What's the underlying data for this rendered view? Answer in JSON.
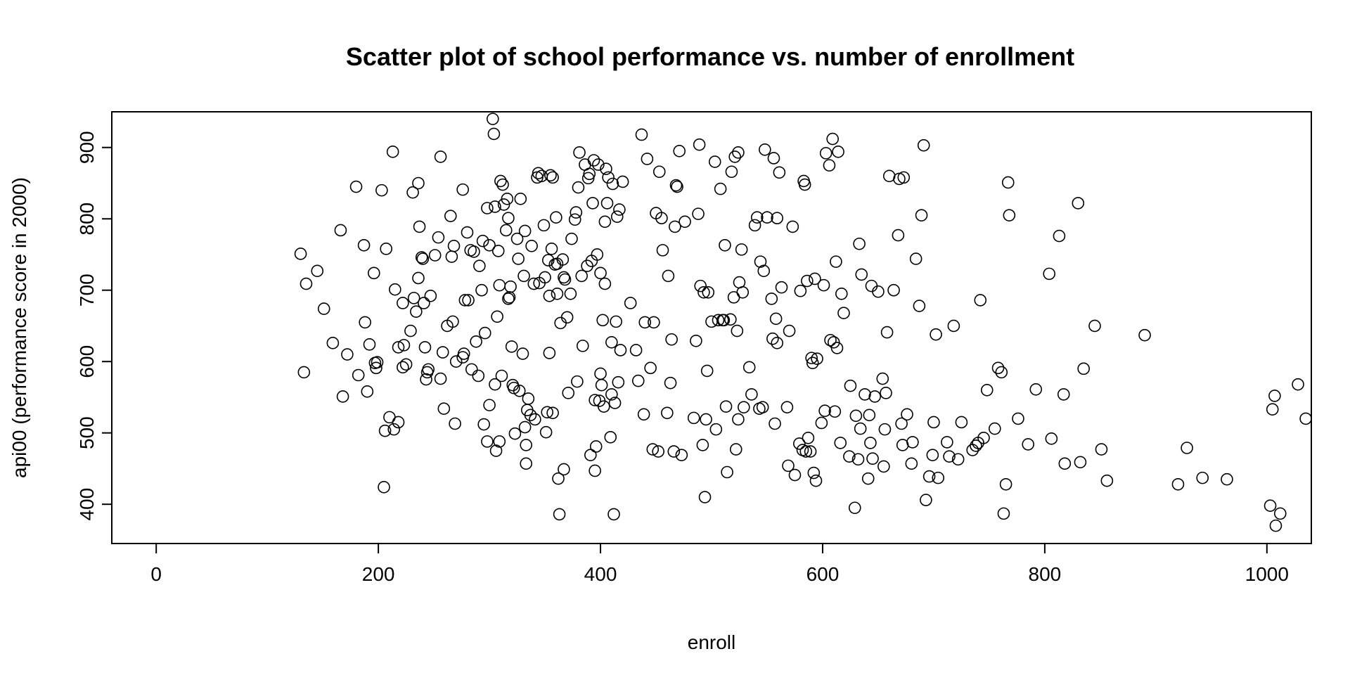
{
  "chart_data": {
    "type": "scatter",
    "title": "Scatter plot of school performance vs. number of enrollment",
    "xlabel": "enroll",
    "ylabel": "api00 (performance score in 2000)",
    "xlim": [
      -40,
      1040
    ],
    "ylim": [
      345,
      950
    ],
    "xticks": [
      0,
      200,
      400,
      600,
      800,
      1000
    ],
    "yticks": [
      400,
      500,
      600,
      700,
      800,
      900
    ],
    "grid": false,
    "legend": "none",
    "marker": "open-circle",
    "color": "#000000",
    "points": [
      [
        130,
        751
      ],
      [
        133,
        585
      ],
      [
        135,
        709
      ],
      [
        145,
        727
      ],
      [
        151,
        674
      ],
      [
        159,
        626
      ],
      [
        166,
        784
      ],
      [
        168,
        551
      ],
      [
        172,
        610
      ],
      [
        180,
        845
      ],
      [
        182,
        581
      ],
      [
        187,
        763
      ],
      [
        188,
        655
      ],
      [
        190,
        558
      ],
      [
        192,
        624
      ],
      [
        196,
        724
      ],
      [
        197,
        598
      ],
      [
        198,
        591
      ],
      [
        199,
        599
      ],
      [
        203,
        840
      ],
      [
        205,
        424
      ],
      [
        206,
        503
      ],
      [
        207,
        758
      ],
      [
        210,
        522
      ],
      [
        213,
        894
      ],
      [
        214,
        505
      ],
      [
        215,
        701
      ],
      [
        218,
        515
      ],
      [
        218,
        620
      ],
      [
        222,
        682
      ],
      [
        222,
        592
      ],
      [
        223,
        623
      ],
      [
        225,
        596
      ],
      [
        229,
        643
      ],
      [
        231,
        837
      ],
      [
        232,
        689
      ],
      [
        234,
        670
      ],
      [
        236,
        717
      ],
      [
        236,
        850
      ],
      [
        237,
        789
      ],
      [
        239,
        746
      ],
      [
        240,
        744
      ],
      [
        241,
        682
      ],
      [
        242,
        620
      ],
      [
        243,
        575
      ],
      [
        244,
        585
      ],
      [
        245,
        589
      ],
      [
        247,
        692
      ],
      [
        251,
        749
      ],
      [
        254,
        774
      ],
      [
        256,
        887
      ],
      [
        256,
        576
      ],
      [
        258,
        613
      ],
      [
        259,
        534
      ],
      [
        262,
        650
      ],
      [
        265,
        804
      ],
      [
        266,
        747
      ],
      [
        267,
        656
      ],
      [
        268,
        762
      ],
      [
        269,
        513
      ],
      [
        270,
        600
      ],
      [
        276,
        841
      ],
      [
        276,
        606
      ],
      [
        277,
        611
      ],
      [
        278,
        686
      ],
      [
        280,
        781
      ],
      [
        281,
        686
      ],
      [
        283,
        756
      ],
      [
        284,
        589
      ],
      [
        286,
        754
      ],
      [
        288,
        628
      ],
      [
        290,
        580
      ],
      [
        291,
        734
      ],
      [
        293,
        700
      ],
      [
        294,
        769
      ],
      [
        295,
        512
      ],
      [
        296,
        640
      ],
      [
        298,
        815
      ],
      [
        298,
        488
      ],
      [
        300,
        539
      ],
      [
        300,
        763
      ],
      [
        303,
        940
      ],
      [
        304,
        919
      ],
      [
        305,
        817
      ],
      [
        305,
        568
      ],
      [
        306,
        475
      ],
      [
        307,
        663
      ],
      [
        308,
        755
      ],
      [
        309,
        707
      ],
      [
        309,
        488
      ],
      [
        310,
        853
      ],
      [
        311,
        580
      ],
      [
        312,
        848
      ],
      [
        313,
        820
      ],
      [
        315,
        784
      ],
      [
        316,
        828
      ],
      [
        317,
        688
      ],
      [
        317,
        801
      ],
      [
        318,
        690
      ],
      [
        319,
        705
      ],
      [
        320,
        621
      ],
      [
        321,
        567
      ],
      [
        322,
        563
      ],
      [
        323,
        499
      ],
      [
        325,
        772
      ],
      [
        326,
        744
      ],
      [
        327,
        559
      ],
      [
        328,
        828
      ],
      [
        330,
        611
      ],
      [
        331,
        720
      ],
      [
        332,
        783
      ],
      [
        332,
        508
      ],
      [
        333,
        457
      ],
      [
        333,
        483
      ],
      [
        334,
        532
      ],
      [
        335,
        548
      ],
      [
        337,
        525
      ],
      [
        338,
        762
      ],
      [
        340,
        709
      ],
      [
        341,
        519
      ],
      [
        343,
        858
      ],
      [
        344,
        864
      ],
      [
        345,
        710
      ],
      [
        347,
        860
      ],
      [
        349,
        791
      ],
      [
        350,
        718
      ],
      [
        351,
        501
      ],
      [
        352,
        529
      ],
      [
        353,
        742
      ],
      [
        354,
        612
      ],
      [
        354,
        692
      ],
      [
        355,
        861
      ],
      [
        356,
        758
      ],
      [
        357,
        858
      ],
      [
        357,
        528
      ],
      [
        359,
        736
      ],
      [
        360,
        802
      ],
      [
        361,
        737
      ],
      [
        361,
        695
      ],
      [
        362,
        436
      ],
      [
        363,
        386
      ],
      [
        364,
        654
      ],
      [
        366,
        743
      ],
      [
        367,
        449
      ],
      [
        367,
        718
      ],
      [
        368,
        715
      ],
      [
        370,
        662
      ],
      [
        371,
        556
      ],
      [
        373,
        695
      ],
      [
        374,
        772
      ],
      [
        377,
        799
      ],
      [
        378,
        809
      ],
      [
        379,
        572
      ],
      [
        380,
        844
      ],
      [
        381,
        893
      ],
      [
        383,
        720
      ],
      [
        384,
        622
      ],
      [
        386,
        876
      ],
      [
        388,
        734
      ],
      [
        389,
        857
      ],
      [
        390,
        863
      ],
      [
        391,
        469
      ],
      [
        392,
        741
      ],
      [
        393,
        822
      ],
      [
        394,
        882
      ],
      [
        395,
        546
      ],
      [
        395,
        447
      ],
      [
        396,
        481
      ],
      [
        397,
        750
      ],
      [
        398,
        876
      ],
      [
        399,
        545
      ],
      [
        400,
        583
      ],
      [
        400,
        724
      ],
      [
        401,
        567
      ],
      [
        402,
        658
      ],
      [
        403,
        537
      ],
      [
        404,
        709
      ],
      [
        404,
        796
      ],
      [
        405,
        870
      ],
      [
        406,
        822
      ],
      [
        407,
        858
      ],
      [
        409,
        494
      ],
      [
        410,
        627
      ],
      [
        410,
        554
      ],
      [
        411,
        849
      ],
      [
        412,
        386
      ],
      [
        413,
        542
      ],
      [
        414,
        656
      ],
      [
        415,
        803
      ],
      [
        416,
        571
      ],
      [
        417,
        813
      ],
      [
        418,
        616
      ],
      [
        420,
        852
      ],
      [
        427,
        682
      ],
      [
        432,
        616
      ],
      [
        434,
        573
      ],
      [
        437,
        918
      ],
      [
        439,
        526
      ],
      [
        440,
        655
      ],
      [
        442,
        884
      ],
      [
        445,
        591
      ],
      [
        447,
        477
      ],
      [
        448,
        655
      ],
      [
        450,
        808
      ],
      [
        452,
        474
      ],
      [
        453,
        866
      ],
      [
        455,
        801
      ],
      [
        456,
        756
      ],
      [
        460,
        528
      ],
      [
        461,
        720
      ],
      [
        463,
        570
      ],
      [
        464,
        631
      ],
      [
        466,
        474
      ],
      [
        467,
        789
      ],
      [
        468,
        847
      ],
      [
        469,
        845
      ],
      [
        471,
        895
      ],
      [
        473,
        469
      ],
      [
        476,
        796
      ],
      [
        484,
        521
      ],
      [
        486,
        629
      ],
      [
        488,
        807
      ],
      [
        489,
        904
      ],
      [
        490,
        706
      ],
      [
        492,
        483
      ],
      [
        493,
        697
      ],
      [
        494,
        410
      ],
      [
        495,
        519
      ],
      [
        496,
        587
      ],
      [
        497,
        697
      ],
      [
        500,
        656
      ],
      [
        503,
        880
      ],
      [
        504,
        505
      ],
      [
        506,
        658
      ],
      [
        508,
        842
      ],
      [
        510,
        658
      ],
      [
        511,
        658
      ],
      [
        512,
        763
      ],
      [
        513,
        537
      ],
      [
        514,
        445
      ],
      [
        517,
        659
      ],
      [
        518,
        866
      ],
      [
        520,
        690
      ],
      [
        521,
        887
      ],
      [
        522,
        477
      ],
      [
        523,
        643
      ],
      [
        524,
        519
      ],
      [
        524,
        893
      ],
      [
        525,
        711
      ],
      [
        527,
        757
      ],
      [
        528,
        697
      ],
      [
        529,
        536
      ],
      [
        534,
        592
      ],
      [
        536,
        554
      ],
      [
        539,
        791
      ],
      [
        541,
        802
      ],
      [
        543,
        534
      ],
      [
        544,
        740
      ],
      [
        546,
        536
      ],
      [
        547,
        727
      ],
      [
        548,
        897
      ],
      [
        550,
        802
      ],
      [
        554,
        688
      ],
      [
        555,
        632
      ],
      [
        556,
        885
      ],
      [
        557,
        513
      ],
      [
        558,
        660
      ],
      [
        559,
        626
      ],
      [
        559,
        801
      ],
      [
        561,
        865
      ],
      [
        563,
        704
      ],
      [
        568,
        536
      ],
      [
        569,
        454
      ],
      [
        570,
        643
      ],
      [
        573,
        789
      ],
      [
        575,
        441
      ],
      [
        579,
        485
      ],
      [
        580,
        699
      ],
      [
        582,
        476
      ],
      [
        583,
        853
      ],
      [
        584,
        848
      ],
      [
        585,
        474
      ],
      [
        586,
        713
      ],
      [
        587,
        493
      ],
      [
        589,
        474
      ],
      [
        590,
        605
      ],
      [
        591,
        598
      ],
      [
        592,
        444
      ],
      [
        593,
        716
      ],
      [
        594,
        433
      ],
      [
        595,
        604
      ],
      [
        599,
        514
      ],
      [
        601,
        707
      ],
      [
        602,
        531
      ],
      [
        603,
        892
      ],
      [
        606,
        875
      ],
      [
        607,
        630
      ],
      [
        609,
        912
      ],
      [
        610,
        627
      ],
      [
        611,
        530
      ],
      [
        612,
        740
      ],
      [
        613,
        619
      ],
      [
        614,
        894
      ],
      [
        616,
        486
      ],
      [
        617,
        695
      ],
      [
        619,
        668
      ],
      [
        624,
        467
      ],
      [
        625,
        566
      ],
      [
        629,
        395
      ],
      [
        630,
        524
      ],
      [
        632,
        463
      ],
      [
        633,
        765
      ],
      [
        634,
        506
      ],
      [
        635,
        722
      ],
      [
        638,
        554
      ],
      [
        641,
        436
      ],
      [
        642,
        525
      ],
      [
        643,
        486
      ],
      [
        644,
        706
      ],
      [
        645,
        464
      ],
      [
        647,
        551
      ],
      [
        650,
        698
      ],
      [
        654,
        576
      ],
      [
        655,
        453
      ],
      [
        656,
        505
      ],
      [
        657,
        556
      ],
      [
        658,
        641
      ],
      [
        660,
        860
      ],
      [
        664,
        700
      ],
      [
        668,
        777
      ],
      [
        669,
        856
      ],
      [
        671,
        513
      ],
      [
        672,
        483
      ],
      [
        673,
        858
      ],
      [
        676,
        526
      ],
      [
        680,
        457
      ],
      [
        681,
        487
      ],
      [
        684,
        744
      ],
      [
        687,
        678
      ],
      [
        689,
        805
      ],
      [
        691,
        903
      ],
      [
        693,
        406
      ],
      [
        696,
        439
      ],
      [
        699,
        469
      ],
      [
        700,
        515
      ],
      [
        702,
        638
      ],
      [
        704,
        437
      ],
      [
        712,
        487
      ],
      [
        714,
        467
      ],
      [
        718,
        650
      ],
      [
        722,
        463
      ],
      [
        725,
        515
      ],
      [
        735,
        476
      ],
      [
        738,
        482
      ],
      [
        740,
        486
      ],
      [
        742,
        686
      ],
      [
        745,
        493
      ],
      [
        748,
        560
      ],
      [
        755,
        506
      ],
      [
        758,
        591
      ],
      [
        761,
        585
      ],
      [
        763,
        387
      ],
      [
        765,
        428
      ],
      [
        767,
        851
      ],
      [
        768,
        805
      ],
      [
        776,
        520
      ],
      [
        785,
        484
      ],
      [
        792,
        561
      ],
      [
        804,
        723
      ],
      [
        806,
        492
      ],
      [
        813,
        776
      ],
      [
        817,
        554
      ],
      [
        818,
        457
      ],
      [
        830,
        822
      ],
      [
        832,
        459
      ],
      [
        835,
        590
      ],
      [
        845,
        650
      ],
      [
        851,
        477
      ],
      [
        856,
        433
      ],
      [
        890,
        637
      ],
      [
        920,
        428
      ],
      [
        928,
        479
      ],
      [
        942,
        437
      ],
      [
        964,
        435
      ],
      [
        1003,
        398
      ],
      [
        1005,
        533
      ],
      [
        1007,
        552
      ],
      [
        1008,
        370
      ],
      [
        1012,
        387
      ],
      [
        1028,
        568
      ],
      [
        1035,
        520
      ]
    ]
  }
}
